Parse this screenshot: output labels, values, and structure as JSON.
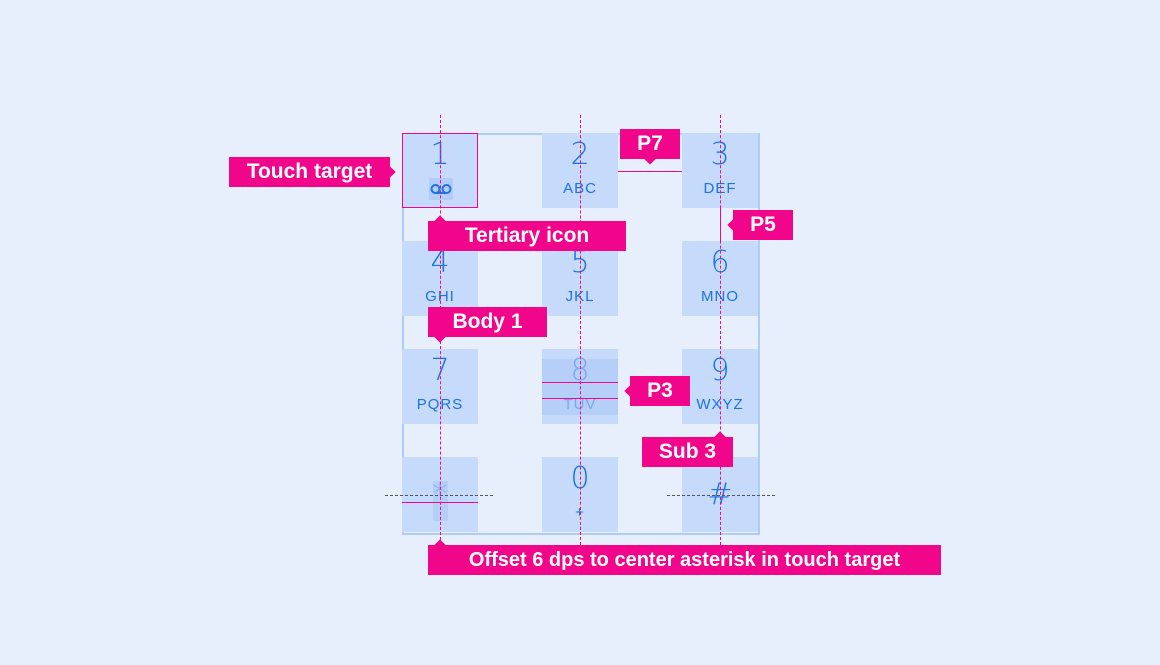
{
  "keys": [
    {
      "digit": "1",
      "letters": ""
    },
    {
      "digit": "2",
      "letters": "ABC"
    },
    {
      "digit": "3",
      "letters": "DEF"
    },
    {
      "digit": "4",
      "letters": "GHI"
    },
    {
      "digit": "5",
      "letters": "JKL"
    },
    {
      "digit": "6",
      "letters": "MNO"
    },
    {
      "digit": "7",
      "letters": "PQRS"
    },
    {
      "digit": "8",
      "letters": "TUV"
    },
    {
      "digit": "9",
      "letters": "WXYZ"
    },
    {
      "digit": "*",
      "letters": ""
    },
    {
      "digit": "0",
      "letters": "+"
    },
    {
      "digit": "#",
      "letters": ""
    }
  ],
  "voicemail_icon": "voicemail-icon",
  "annotations": {
    "touch_target": "Touch target",
    "tertiary_icon": "Tertiary icon",
    "body1": "Body 1",
    "p7": "P7",
    "p5": "P5",
    "p3": "P3",
    "sub3": "Sub 3",
    "offset": "Offset 6 dps to center asterisk in touch target"
  },
  "colors": {
    "background": "#e8effc",
    "key": "#c6dafc",
    "text": "#1a73e8",
    "annotation": "#f0058b"
  }
}
